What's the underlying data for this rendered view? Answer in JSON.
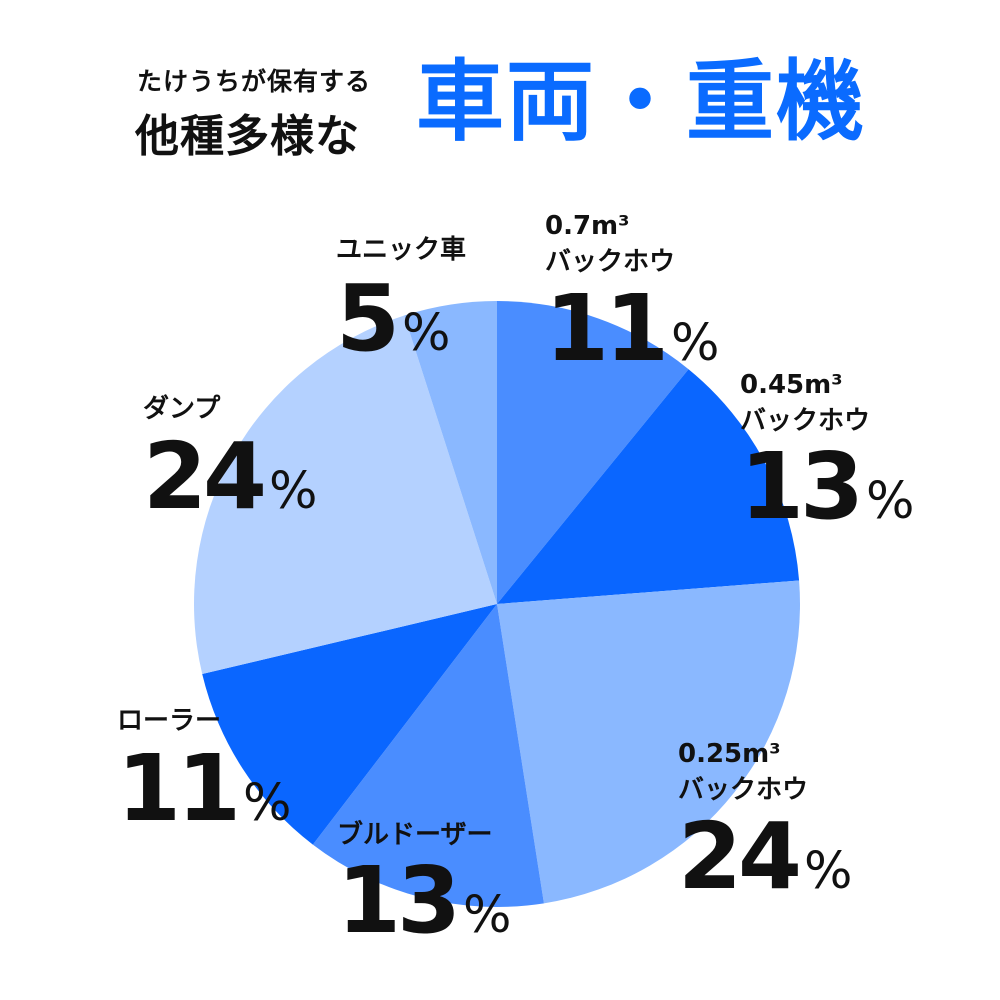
{
  "header": {
    "lead": "たけうちが保有する",
    "sub": "他種多様な",
    "highlight": "車両・重機"
  },
  "chart_data": {
    "type": "pie",
    "title": "車両・重機",
    "unit": "%",
    "start_angle_deg": 0,
    "direction": "clockwise",
    "legend": "none",
    "slices": [
      {
        "label_lines": [
          "0.7m³",
          "バックホウ"
        ],
        "value": 11,
        "color": "#4a8dff"
      },
      {
        "label_lines": [
          "0.45m³",
          "バックホウ"
        ],
        "value": 13,
        "color": "#0a66ff"
      },
      {
        "label_lines": [
          "0.25m³",
          "バックホウ"
        ],
        "value": 24,
        "color": "#8ab8ff"
      },
      {
        "label_lines": [
          "ブルドーザー"
        ],
        "value": 13,
        "color": "#4a8dff"
      },
      {
        "label_lines": [
          "ローラー"
        ],
        "value": 11,
        "color": "#0a66ff"
      },
      {
        "label_lines": [
          "ダンプ"
        ],
        "value": 24,
        "color": "#b4d1ff"
      },
      {
        "label_lines": [
          "ユニック車"
        ],
        "value": 5,
        "color": "#8ab8ff"
      }
    ]
  }
}
